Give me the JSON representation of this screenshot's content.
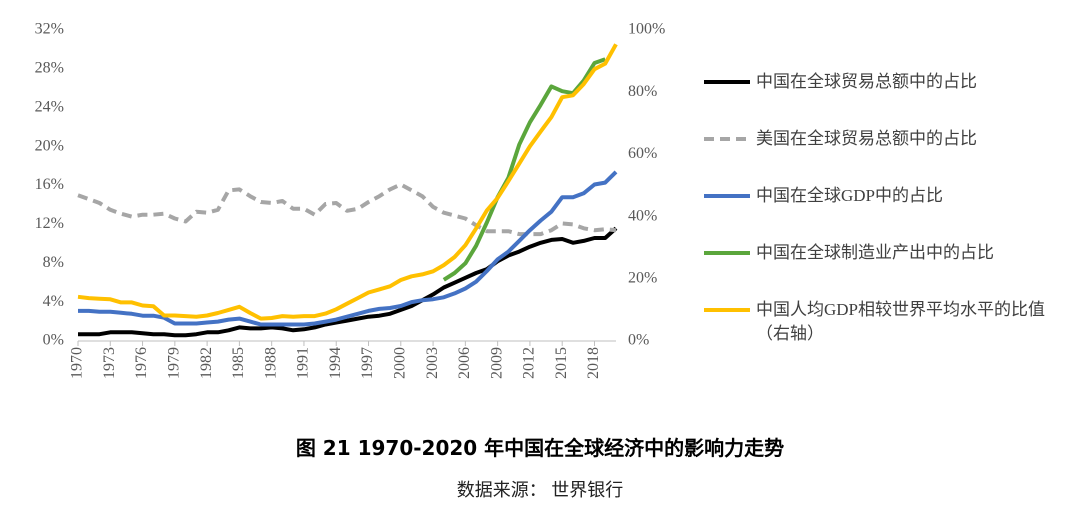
{
  "chart_data": {
    "type": "line",
    "caption": "图 21 1970-2020 年中国在全球经济中的影响力走势",
    "source": "数据来源： 世界银行",
    "x": [
      1970,
      1971,
      1972,
      1973,
      1974,
      1975,
      1976,
      1977,
      1978,
      1979,
      1980,
      1981,
      1982,
      1983,
      1984,
      1985,
      1986,
      1987,
      1988,
      1989,
      1990,
      1991,
      1992,
      1993,
      1994,
      1995,
      1996,
      1997,
      1998,
      1999,
      2000,
      2001,
      2002,
      2003,
      2004,
      2005,
      2006,
      2007,
      2008,
      2009,
      2010,
      2011,
      2012,
      2013,
      2014,
      2015,
      2016,
      2017,
      2018,
      2019,
      2020
    ],
    "xlim": [
      1970,
      2020
    ],
    "xticks": [
      1970,
      1973,
      1976,
      1979,
      1982,
      1985,
      1988,
      1991,
      1994,
      1997,
      2000,
      2003,
      2006,
      2009,
      2012,
      2015,
      2018
    ],
    "ylim": [
      0,
      32
    ],
    "yticks": [
      {
        "value": 0,
        "label": "0%"
      },
      {
        "value": 4,
        "label": "4%"
      },
      {
        "value": 8,
        "label": "8%"
      },
      {
        "value": 12,
        "label": "12%"
      },
      {
        "value": 16,
        "label": "16%"
      },
      {
        "value": 20,
        "label": "20%"
      },
      {
        "value": 24,
        "label": "24%"
      },
      {
        "value": 28,
        "label": "28%"
      },
      {
        "value": 32,
        "label": "32%"
      }
    ],
    "y2lim": [
      0,
      100
    ],
    "y2ticks": [
      {
        "value": 0,
        "label": "0%"
      },
      {
        "value": 20,
        "label": "20%"
      },
      {
        "value": 40,
        "label": "40%"
      },
      {
        "value": 60,
        "label": "60%"
      },
      {
        "value": 80,
        "label": "80%"
      },
      {
        "value": 100,
        "label": "100%"
      }
    ],
    "grid": false,
    "series": [
      {
        "name": "中国在全球贸易总额中的占比",
        "color": "#000000",
        "style": "solid",
        "values": [
          0.7,
          0.7,
          0.7,
          0.9,
          0.9,
          0.9,
          0.8,
          0.7,
          0.7,
          0.6,
          0.6,
          0.7,
          0.9,
          0.9,
          1.1,
          1.4,
          1.3,
          1.3,
          1.4,
          1.3,
          1.1,
          1.2,
          1.4,
          1.7,
          1.9,
          2.1,
          2.3,
          2.5,
          2.6,
          2.8,
          3.2,
          3.6,
          4.2,
          4.8,
          5.5,
          6.0,
          6.5,
          7.0,
          7.4,
          8.2,
          8.8,
          9.2,
          9.7,
          10.1,
          10.4,
          10.5,
          10.1,
          10.3,
          10.6,
          10.6,
          11.6
        ]
      },
      {
        "name": "美国在全球贸易总额中的占比",
        "color": "#a6a6a6",
        "style": "dashed",
        "values": [
          15.0,
          14.6,
          14.2,
          13.5,
          13.1,
          12.8,
          13.0,
          13.0,
          13.1,
          12.6,
          12.3,
          13.3,
          13.2,
          13.5,
          15.5,
          15.6,
          14.9,
          14.3,
          14.2,
          14.4,
          13.6,
          13.6,
          13.0,
          14.1,
          14.2,
          13.4,
          13.6,
          14.3,
          14.9,
          15.6,
          16.1,
          15.5,
          14.9,
          13.8,
          13.2,
          12.9,
          12.6,
          11.9,
          11.3,
          11.3,
          11.3,
          11.0,
          11.0,
          11.0,
          11.4,
          12.1,
          12.0,
          11.6,
          11.4,
          11.5,
          11.4
        ]
      },
      {
        "name": "中国在全球GDP中的占比",
        "color": "#4472c4",
        "style": "solid",
        "values": [
          3.1,
          3.1,
          3.0,
          3.0,
          2.9,
          2.8,
          2.6,
          2.6,
          2.4,
          1.8,
          1.8,
          1.8,
          1.9,
          2.0,
          2.2,
          2.3,
          2.0,
          1.7,
          1.7,
          1.7,
          1.7,
          1.7,
          1.8,
          2.0,
          2.2,
          2.5,
          2.8,
          3.1,
          3.3,
          3.4,
          3.6,
          4.0,
          4.2,
          4.3,
          4.5,
          4.9,
          5.4,
          6.1,
          7.2,
          8.4,
          9.2,
          10.3,
          11.4,
          12.4,
          13.3,
          14.8,
          14.8,
          15.2,
          16.1,
          16.3,
          17.4
        ]
      },
      {
        "name": "中国在全球制造业产出中的占比",
        "color": "#5ba63c",
        "style": "solid",
        "values": [
          null,
          null,
          null,
          null,
          null,
          null,
          null,
          null,
          null,
          null,
          null,
          null,
          null,
          null,
          null,
          null,
          null,
          null,
          null,
          null,
          null,
          null,
          null,
          null,
          null,
          null,
          null,
          null,
          null,
          null,
          null,
          null,
          null,
          null,
          6.3,
          7.0,
          8.0,
          9.8,
          12.2,
          14.8,
          16.8,
          20.2,
          22.5,
          24.3,
          26.2,
          25.7,
          25.5,
          26.8,
          28.6,
          29.0,
          null
        ]
      },
      {
        "name": "中国人均GDP相较世界平均水平的比值（右轴）",
        "color": "#ffc000",
        "style": "solid",
        "axis": "y2",
        "values": [
          14.2,
          13.8,
          13.6,
          13.4,
          12.4,
          12.4,
          11.4,
          11.2,
          8.2,
          8.2,
          8.0,
          7.8,
          8.2,
          9.0,
          10.0,
          11.0,
          9.0,
          7.2,
          7.4,
          8.0,
          7.8,
          8.0,
          8.0,
          8.8,
          10.2,
          12.0,
          13.8,
          15.6,
          16.6,
          17.6,
          19.6,
          20.8,
          21.4,
          22.4,
          24.4,
          27.0,
          30.8,
          36.2,
          42.0,
          46.0,
          51.4,
          57.0,
          62.6,
          67.4,
          72.0,
          78.4,
          79.0,
          82.6,
          87.4,
          89.2,
          95.4
        ]
      }
    ]
  }
}
